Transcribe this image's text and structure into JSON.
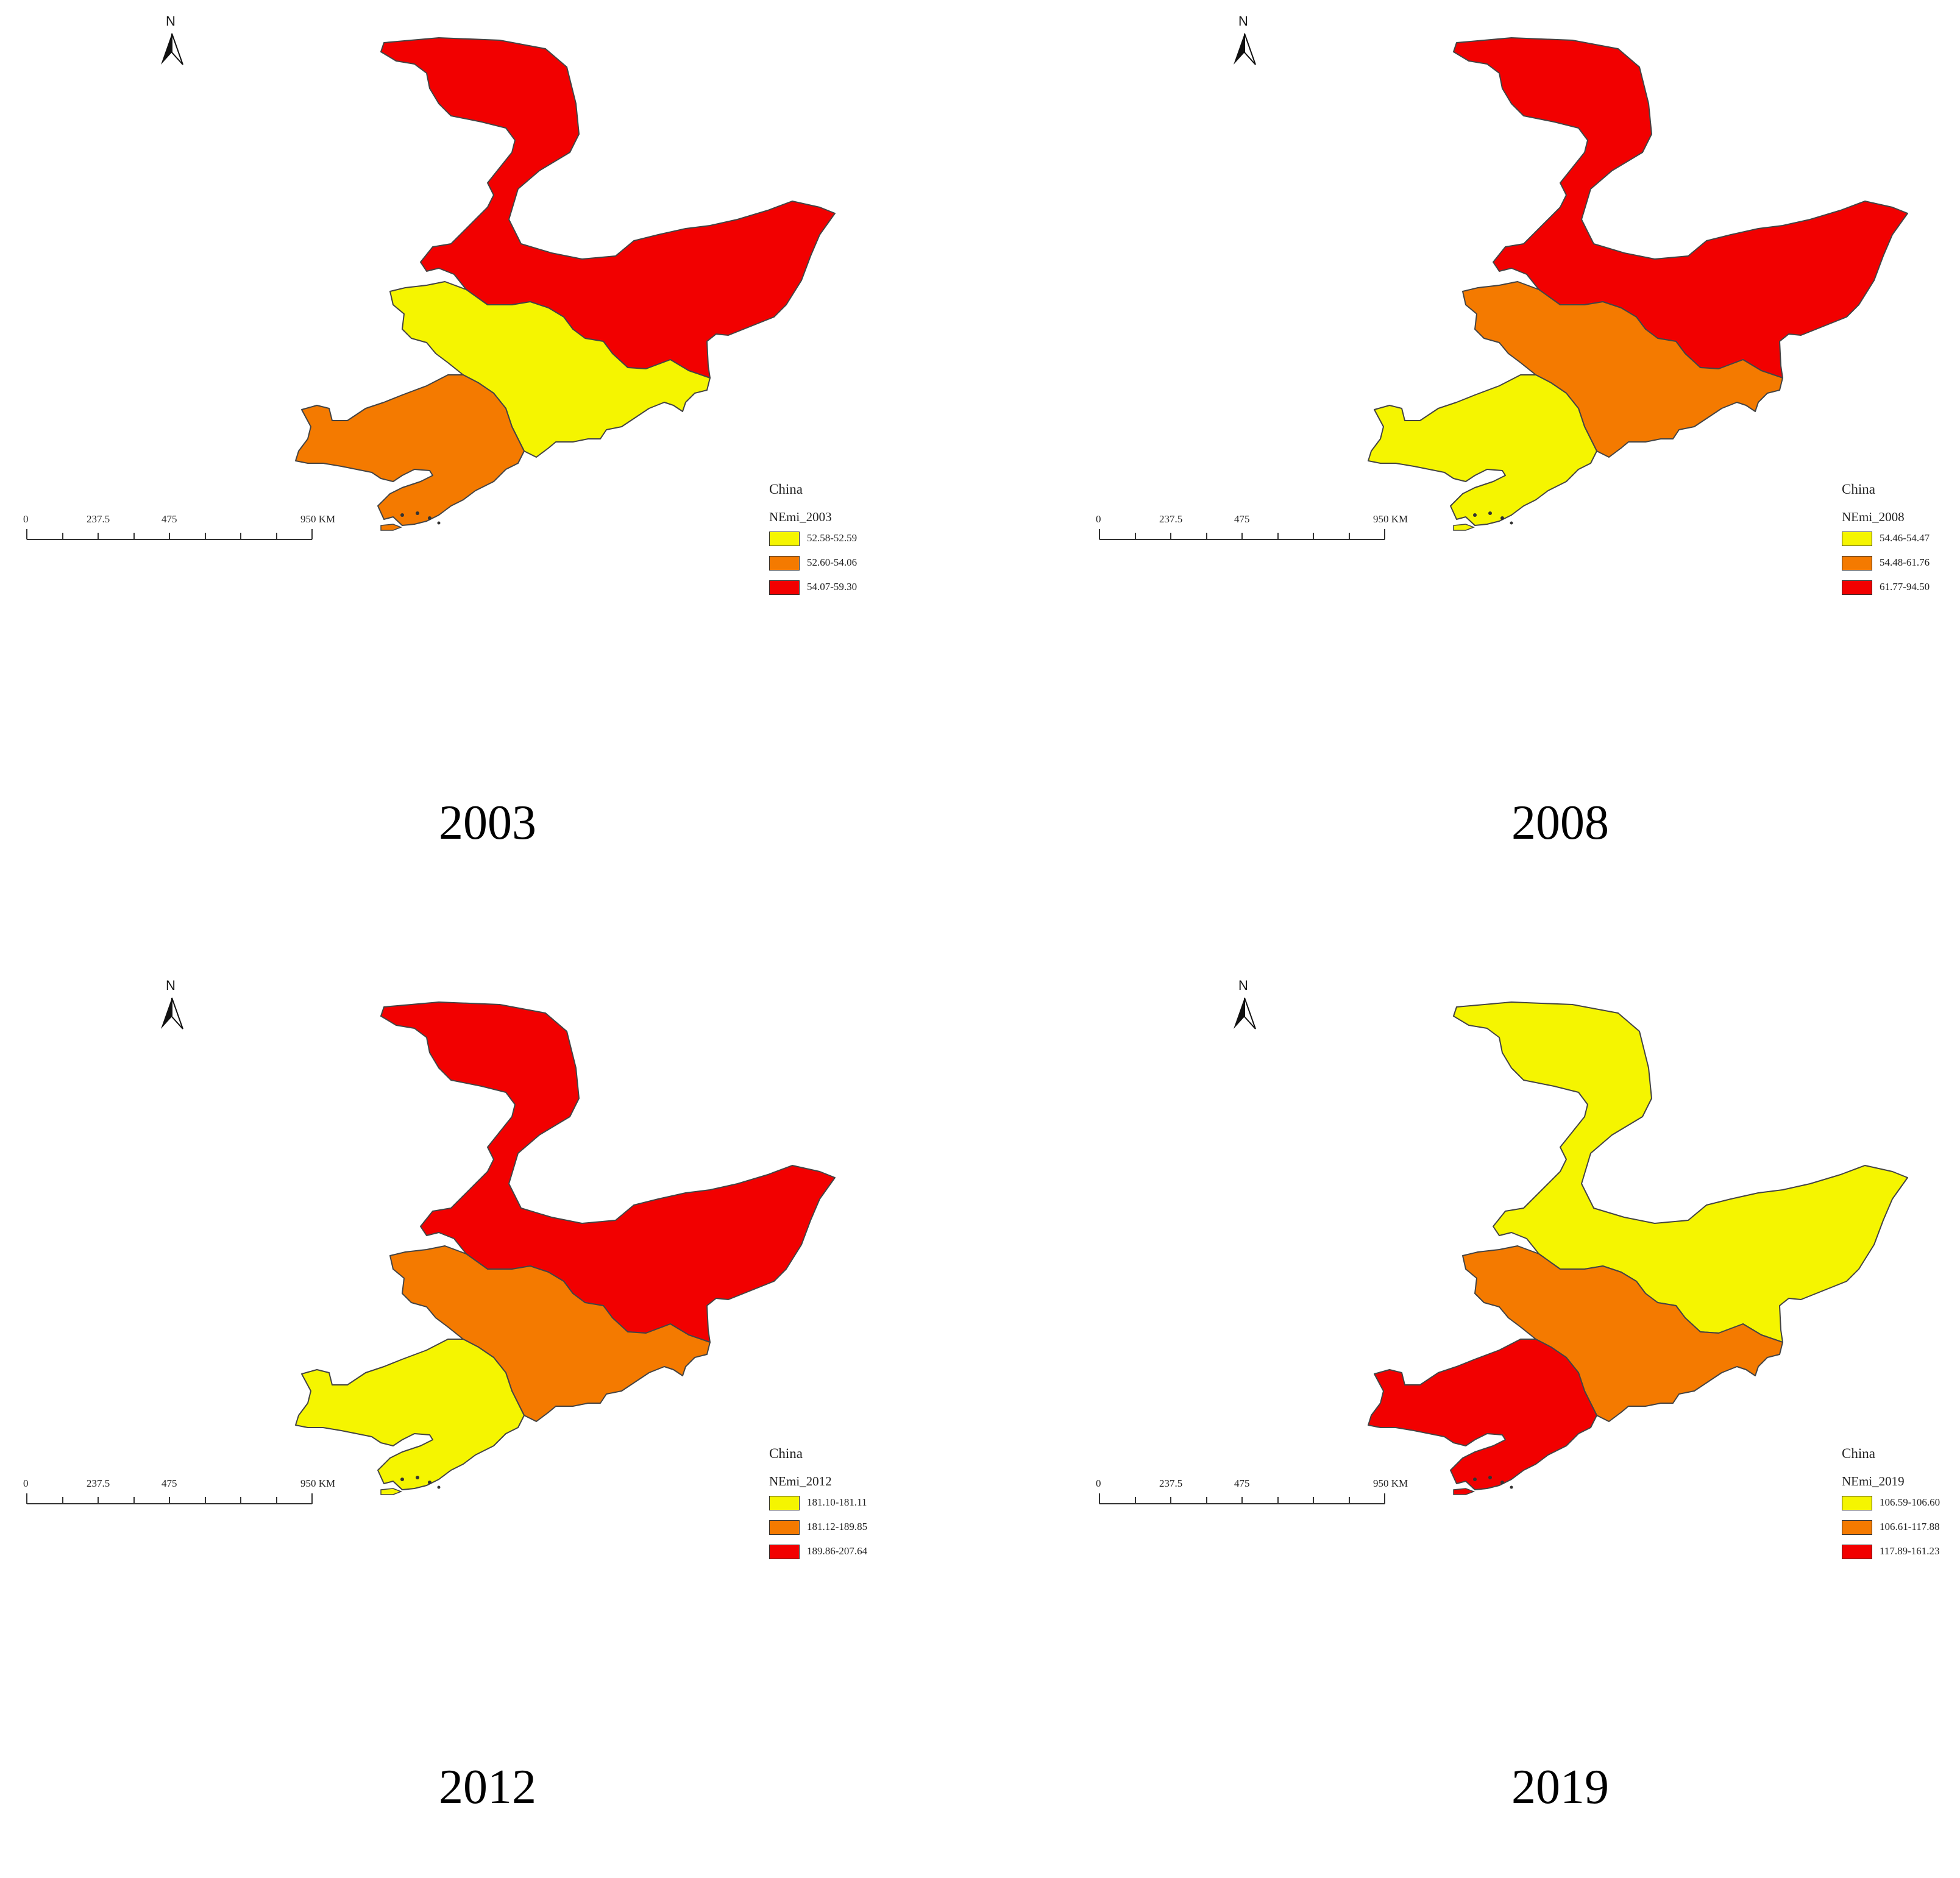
{
  "colors": {
    "low": "#f5f500",
    "mid": "#f47a00",
    "high": "#f20000"
  },
  "common": {
    "legend_title": "China",
    "north_label": "N",
    "scale_labels": [
      "0",
      "237.5",
      "475",
      "950 KM"
    ]
  },
  "panels": [
    {
      "year": "2003",
      "legend_field": "NEmi_2003",
      "legend": [
        "52.58-52.59",
        "52.60-54.06",
        "54.07-59.30"
      ],
      "classes": {
        "heilongjiang": "high",
        "jilin": "low",
        "liaoning": "mid"
      }
    },
    {
      "year": "2008",
      "legend_field": "NEmi_2008",
      "legend": [
        "54.46-54.47",
        "54.48-61.76",
        "61.77-94.50"
      ],
      "classes": {
        "heilongjiang": "high",
        "jilin": "mid",
        "liaoning": "low"
      }
    },
    {
      "year": "2012",
      "legend_field": "NEmi_2012",
      "legend": [
        "181.10-181.11",
        "181.12-189.85",
        "189.86-207.64"
      ],
      "classes": {
        "heilongjiang": "high",
        "jilin": "mid",
        "liaoning": "low"
      }
    },
    {
      "year": "2019",
      "legend_field": "NEmi_2019",
      "legend": [
        "106.59-106.60",
        "106.61-117.88",
        "117.89-161.23"
      ],
      "classes": {
        "heilongjiang": "low",
        "jilin": "mid",
        "liaoning": "high"
      }
    }
  ]
}
